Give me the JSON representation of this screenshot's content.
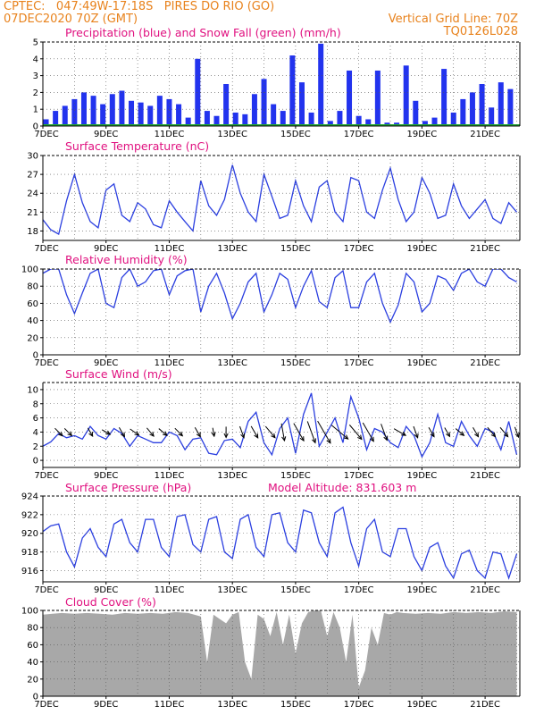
{
  "header": {
    "line1": "CPTEC:   047:49W-17:18S   PIRES DO RIO (GO)",
    "line2": "07DEC2020 70Z (GMT)",
    "right1": "Vertical Grid Line: 70Z",
    "right2": "TQ0126L028",
    "color": "#e8821c"
  },
  "colors": {
    "title": "#e0107f",
    "line": "#2b3fe0",
    "precip": "#2233ee",
    "snow": "#22aa33",
    "cloud": "#a8a8a8",
    "grid": "#555555"
  },
  "x_ticks": [
    "7DEC",
    "9DEC",
    "11DEC",
    "13DEC",
    "15DEC",
    "17DEC",
    "19DEC",
    "21DEC"
  ],
  "panel_titles": {
    "precip": "Precipitation (blue) and Snow Fall (green) (mm/h)",
    "temp": "Surface Temperature (nC)",
    "rh": "Relative Humidity (%)",
    "wind": "Surface Wind (m/s)",
    "pres": "Surface Pressure (hPa)",
    "pres_extra": "Model Altitude: 831.603 m",
    "cloud": "Cloud Cover (%)"
  },
  "chart_data": [
    {
      "id": "precip",
      "type": "bar",
      "title": "Precipitation (blue) and Snow Fall (green) (mm/h)",
      "xlabel": "",
      "ylabel": "",
      "ylim": [
        0,
        5
      ],
      "yticks": [
        0,
        1,
        2,
        3,
        4,
        5
      ],
      "x_range_days": [
        7,
        22.1
      ],
      "series": [
        {
          "name": "Precipitation",
          "color": "#2233ee",
          "x": [
            7.1,
            7.4,
            7.7,
            8.0,
            8.3,
            8.6,
            8.9,
            9.2,
            9.5,
            9.8,
            10.1,
            10.4,
            10.7,
            11.0,
            11.3,
            11.6,
            11.9,
            12.2,
            12.5,
            12.8,
            13.1,
            13.4,
            13.7,
            14.0,
            14.3,
            14.6,
            14.9,
            15.2,
            15.5,
            15.8,
            16.1,
            16.4,
            16.7,
            17.0,
            17.3,
            17.6,
            17.9,
            18.2,
            18.5,
            18.8,
            19.1,
            19.4,
            19.7,
            20.0,
            20.3,
            20.6,
            20.9,
            21.2,
            21.5,
            21.8
          ],
          "values": [
            0.4,
            0.9,
            1.2,
            1.6,
            2.0,
            1.8,
            1.3,
            1.9,
            2.1,
            1.5,
            1.4,
            1.2,
            1.8,
            1.6,
            1.3,
            0.5,
            4.0,
            0.9,
            0.6,
            2.5,
            0.8,
            0.7,
            1.9,
            2.8,
            1.3,
            0.9,
            4.2,
            2.6,
            0.8,
            4.9,
            0.3,
            0.9,
            3.3,
            0.6,
            0.4,
            3.3,
            0.2,
            0.2,
            3.6,
            1.5,
            0.3,
            0.5,
            3.4,
            0.8,
            1.6,
            2.0,
            2.5,
            1.1,
            2.6,
            2.2
          ]
        }
      ]
    },
    {
      "id": "temp",
      "type": "line",
      "title": "Surface Temperature (nC)",
      "xlabel": "",
      "ylabel": "",
      "ylim": [
        16.5,
        30
      ],
      "yticks": [
        18,
        21,
        24,
        27,
        30
      ],
      "x_range_days": [
        7,
        22.1
      ],
      "series": [
        {
          "name": "",
          "color": "#2b3fe0",
          "x": [
            7.0,
            7.25,
            7.5,
            7.75,
            8.0,
            8.25,
            8.5,
            8.75,
            9.0,
            9.25,
            9.5,
            9.75,
            10.0,
            10.25,
            10.5,
            10.75,
            11.0,
            11.25,
            11.5,
            11.75,
            12.0,
            12.25,
            12.5,
            12.75,
            13.0,
            13.25,
            13.5,
            13.75,
            14.0,
            14.25,
            14.5,
            14.75,
            15.0,
            15.25,
            15.5,
            15.75,
            16.0,
            16.25,
            16.5,
            16.75,
            17.0,
            17.25,
            17.5,
            17.75,
            18.0,
            18.25,
            18.5,
            18.75,
            19.0,
            19.25,
            19.5,
            19.75,
            20.0,
            20.25,
            20.5,
            20.75,
            21.0,
            21.25,
            21.5,
            21.75,
            22.0
          ],
          "y": [
            19.8,
            18.2,
            17.5,
            22.8,
            27.0,
            22.5,
            19.5,
            18.5,
            24.5,
            25.5,
            20.5,
            19.5,
            22.5,
            21.5,
            19.0,
            18.5,
            22.8,
            21.0,
            19.5,
            18.0,
            26.0,
            22.0,
            20.5,
            23.0,
            28.5,
            24.0,
            21.0,
            19.5,
            27.0,
            23.5,
            20.0,
            20.5,
            26.0,
            22.0,
            19.5,
            25.0,
            26.0,
            21.0,
            19.5,
            26.5,
            26.0,
            21.0,
            20.0,
            24.5,
            28.0,
            23.0,
            19.5,
            21.0,
            26.5,
            24.0,
            20.0,
            20.5,
            25.5,
            22.0,
            20.0,
            21.5,
            23.0,
            20.0,
            19.2,
            22.5,
            21.0
          ]
        }
      ]
    },
    {
      "id": "rh",
      "type": "line",
      "title": "Relative Humidity (%)",
      "xlabel": "",
      "ylabel": "",
      "ylim": [
        0,
        100
      ],
      "yticks": [
        0,
        20,
        40,
        60,
        80,
        100
      ],
      "x_range_days": [
        7,
        22.1
      ],
      "series": [
        {
          "name": "",
          "color": "#2b3fe0",
          "x": [
            7.0,
            7.25,
            7.5,
            7.75,
            8.0,
            8.25,
            8.5,
            8.75,
            9.0,
            9.25,
            9.5,
            9.75,
            10.0,
            10.25,
            10.5,
            10.75,
            11.0,
            11.25,
            11.5,
            11.75,
            12.0,
            12.25,
            12.5,
            12.75,
            13.0,
            13.25,
            13.5,
            13.75,
            14.0,
            14.25,
            14.5,
            14.75,
            15.0,
            15.25,
            15.5,
            15.75,
            16.0,
            16.25,
            16.5,
            16.75,
            17.0,
            17.25,
            17.5,
            17.75,
            18.0,
            18.25,
            18.5,
            18.75,
            19.0,
            19.25,
            19.5,
            19.75,
            20.0,
            20.25,
            20.5,
            20.75,
            21.0,
            21.25,
            21.5,
            21.75,
            22.0
          ],
          "y": [
            95,
            100,
            100,
            70,
            48,
            72,
            95,
            100,
            60,
            55,
            90,
            100,
            80,
            85,
            98,
            100,
            70,
            92,
            98,
            100,
            50,
            80,
            95,
            72,
            42,
            60,
            85,
            95,
            50,
            70,
            95,
            88,
            55,
            80,
            98,
            62,
            55,
            90,
            98,
            55,
            55,
            85,
            95,
            60,
            38,
            58,
            95,
            85,
            50,
            60,
            92,
            88,
            75,
            95,
            100,
            85,
            80,
            100,
            100,
            90,
            85
          ]
        }
      ]
    },
    {
      "id": "wind",
      "type": "line",
      "title": "Surface Wind (m/s)",
      "xlabel": "",
      "ylabel": "",
      "ylim": [
        -1,
        11
      ],
      "yticks": [
        0,
        2,
        4,
        6,
        8,
        10
      ],
      "x_range_days": [
        7,
        22.1
      ],
      "series": [
        {
          "name": "",
          "color": "#2b3fe0",
          "x": [
            7.0,
            7.25,
            7.5,
            7.75,
            8.0,
            8.25,
            8.5,
            8.75,
            9.0,
            9.25,
            9.5,
            9.75,
            10.0,
            10.25,
            10.5,
            10.75,
            11.0,
            11.25,
            11.5,
            11.75,
            12.0,
            12.25,
            12.5,
            12.75,
            13.0,
            13.25,
            13.5,
            13.75,
            14.0,
            14.25,
            14.5,
            14.75,
            15.0,
            15.25,
            15.5,
            15.75,
            16.0,
            16.25,
            16.5,
            16.75,
            17.0,
            17.25,
            17.5,
            17.75,
            18.0,
            18.25,
            18.5,
            18.75,
            19.0,
            19.25,
            19.5,
            19.75,
            20.0,
            20.25,
            20.5,
            20.75,
            21.0,
            21.25,
            21.5,
            21.75,
            22.0
          ],
          "y": [
            2.0,
            2.6,
            3.8,
            3.2,
            3.5,
            3.0,
            4.8,
            3.5,
            3.0,
            4.5,
            3.8,
            2.0,
            3.5,
            3.0,
            2.5,
            2.5,
            4.0,
            3.5,
            1.5,
            3.0,
            3.2,
            1.0,
            0.8,
            2.8,
            3.0,
            1.8,
            5.5,
            6.8,
            2.5,
            0.8,
            4.5,
            6.0,
            1.0,
            6.5,
            9.5,
            2.0,
            4.0,
            6.0,
            2.5,
            9.0,
            6.0,
            1.5,
            4.5,
            4.0,
            2.5,
            1.8,
            4.8,
            3.5,
            0.5,
            2.5,
            6.5,
            2.5,
            2.0,
            5.5,
            3.5,
            2.0,
            4.5,
            4.0,
            1.5,
            5.5,
            0.8
          ]
        },
        {
          "name": "direction_deg",
          "x": [
            7.5,
            7.8,
            8.5,
            9.0,
            9.5,
            9.9,
            10.4,
            10.8,
            11.3,
            11.9,
            12.4,
            12.8,
            13.3,
            13.7,
            14.2,
            14.6,
            15.1,
            15.5,
            15.9,
            16.4,
            16.9,
            17.3,
            17.8,
            18.3,
            18.8,
            19.3,
            19.8,
            20.2,
            20.7,
            21.2,
            21.6,
            22.0
          ],
          "dir": [
            315,
            315,
            300,
            330,
            300,
            325,
            310,
            320,
            315,
            300,
            280,
            270,
            290,
            300,
            310,
            280,
            300,
            290,
            300,
            320,
            310,
            300,
            290,
            330,
            290,
            300,
            300,
            320,
            300,
            310,
            310,
            290
          ],
          "speed": [
            2.0,
            1.8,
            1.5,
            1.5,
            2.0,
            2.0,
            2.0,
            2.0,
            2.0,
            2.0,
            1.2,
            2.0,
            2.5,
            3.0,
            3.5,
            4.5,
            5.5,
            6.5,
            7.5,
            6.0,
            5.0,
            6.0,
            4.5,
            3.0,
            2.5,
            2.0,
            1.8,
            2.0,
            2.0,
            2.5,
            2.5,
            2.0
          ]
        }
      ]
    },
    {
      "id": "pres",
      "type": "line",
      "title": "Surface Pressure (hPa)",
      "xlabel": "",
      "ylabel": "",
      "ylim": [
        914.8,
        924
      ],
      "yticks": [
        916,
        918,
        920,
        922,
        924
      ],
      "x_range_days": [
        7,
        22.1
      ],
      "series": [
        {
          "name": "",
          "color": "#2b3fe0",
          "x": [
            7.0,
            7.25,
            7.5,
            7.75,
            8.0,
            8.25,
            8.5,
            8.75,
            9.0,
            9.25,
            9.5,
            9.75,
            10.0,
            10.25,
            10.5,
            10.75,
            11.0,
            11.25,
            11.5,
            11.75,
            12.0,
            12.25,
            12.5,
            12.75,
            13.0,
            13.25,
            13.5,
            13.75,
            14.0,
            14.25,
            14.5,
            14.75,
            15.0,
            15.25,
            15.5,
            15.75,
            16.0,
            16.25,
            16.5,
            16.75,
            17.0,
            17.25,
            17.5,
            17.75,
            18.0,
            18.25,
            18.5,
            18.75,
            19.0,
            19.25,
            19.5,
            19.75,
            20.0,
            20.25,
            20.5,
            20.75,
            21.0,
            21.25,
            21.5,
            21.75,
            22.0
          ],
          "y": [
            920.2,
            920.8,
            921.0,
            918.0,
            916.4,
            919.5,
            920.5,
            918.5,
            917.5,
            921.0,
            921.5,
            919.0,
            918.0,
            921.5,
            921.5,
            918.5,
            917.5,
            921.8,
            922.0,
            918.8,
            918.0,
            921.5,
            921.8,
            918.0,
            917.3,
            921.5,
            922.0,
            918.5,
            917.5,
            922.0,
            922.2,
            919.0,
            918.0,
            922.5,
            922.2,
            919.0,
            917.5,
            922.2,
            922.8,
            919.0,
            916.5,
            920.5,
            921.5,
            918.0,
            917.5,
            920.5,
            920.5,
            917.5,
            916.0,
            918.5,
            919.0,
            916.5,
            915.2,
            917.8,
            918.2,
            916.0,
            915.2,
            918.0,
            917.8,
            915.2,
            917.8
          ]
        }
      ]
    },
    {
      "id": "cloud",
      "type": "area",
      "title": "Cloud Cover (%)",
      "xlabel": "",
      "ylabel": "",
      "ylim": [
        0,
        100
      ],
      "yticks": [
        0,
        20,
        40,
        60,
        80,
        100
      ],
      "x_range_days": [
        7,
        22.1
      ],
      "series": [
        {
          "name": "",
          "color": "#a8a8a8",
          "x": [
            7.0,
            7.3,
            7.6,
            8.0,
            8.4,
            8.8,
            9.2,
            9.6,
            10.0,
            10.4,
            10.8,
            11.2,
            11.6,
            12.0,
            12.2,
            12.4,
            12.6,
            12.8,
            13.0,
            13.2,
            13.4,
            13.6,
            13.8,
            14.0,
            14.2,
            14.4,
            14.6,
            14.8,
            15.0,
            15.2,
            15.4,
            15.6,
            15.8,
            16.0,
            16.2,
            16.4,
            16.6,
            16.8,
            17.0,
            17.2,
            17.4,
            17.6,
            17.8,
            18.0,
            18.2,
            18.4,
            18.8,
            19.2,
            19.6,
            20.0,
            20.4,
            20.8,
            21.2,
            21.6,
            22.0
          ],
          "y": [
            95,
            96,
            97,
            96,
            97,
            96,
            95,
            97,
            96,
            97,
            96,
            98,
            97,
            93,
            40,
            95,
            90,
            85,
            95,
            98,
            40,
            20,
            95,
            90,
            70,
            98,
            60,
            95,
            50,
            85,
            98,
            100,
            100,
            70,
            98,
            80,
            40,
            95,
            10,
            30,
            80,
            60,
            97,
            95,
            98,
            97,
            96,
            97,
            96,
            98,
            97,
            98,
            97,
            99,
            98
          ]
        }
      ]
    }
  ]
}
